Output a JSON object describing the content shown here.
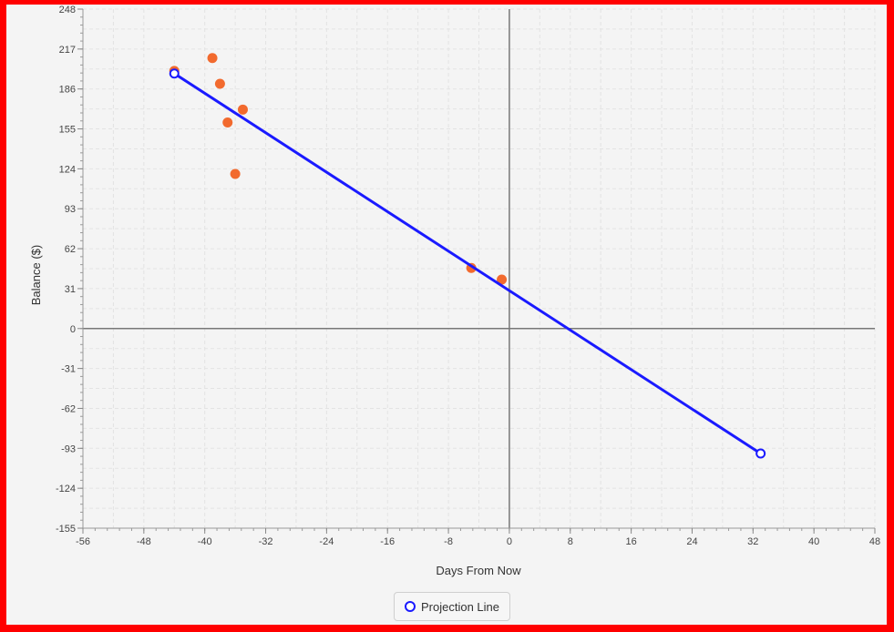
{
  "chart_data": {
    "type": "scatter",
    "title": "",
    "xlabel": "Days From Now",
    "ylabel": "Balance ($)",
    "xlim": [
      -56,
      48
    ],
    "ylim": [
      -155,
      248
    ],
    "xticks": [
      -56,
      -48,
      -40,
      -32,
      -24,
      -16,
      -8,
      0,
      8,
      16,
      24,
      32,
      40,
      48
    ],
    "yticks": [
      248,
      217,
      186,
      155,
      124,
      93,
      62,
      31,
      0,
      -31,
      -62,
      -93,
      -124,
      -155
    ],
    "grid": true,
    "legend_placement": "bottom",
    "series": [
      {
        "type": "scatter",
        "color": "#f26a2e",
        "points": [
          {
            "x": -44,
            "y": 200
          },
          {
            "x": -39,
            "y": 210
          },
          {
            "x": -38,
            "y": 190
          },
          {
            "x": -37,
            "y": 160
          },
          {
            "x": -36,
            "y": 120
          },
          {
            "x": -35,
            "y": 170
          },
          {
            "x": -5,
            "y": 47
          },
          {
            "x": -1,
            "y": 38
          }
        ]
      },
      {
        "name": "Projection Line",
        "type": "line",
        "color": "#1a1aff",
        "points": [
          {
            "x": -44,
            "y": 198
          },
          {
            "x": 33,
            "y": -97
          }
        ]
      }
    ]
  }
}
